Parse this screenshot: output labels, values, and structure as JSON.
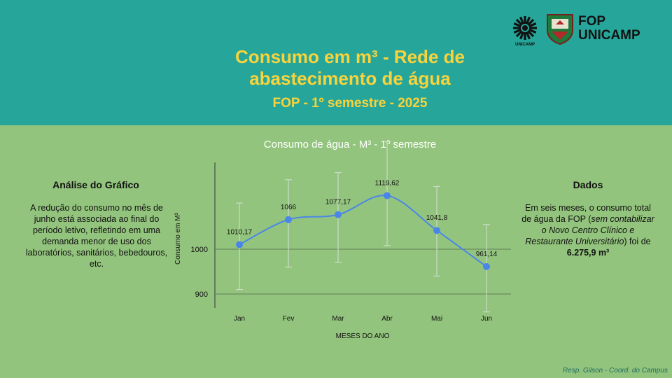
{
  "header": {
    "title_line1": "Consumo em m³ - Rede de",
    "title_line2": "abastecimento de água",
    "subtitle": "FOP - 1º semestre - 2025",
    "brand_line1": "FOP",
    "brand_line2": "UNICAMP",
    "unicamp_logo_text": "UNICAMP"
  },
  "left_panel": {
    "title": "Análise do Gráfico",
    "text": "A redução do consumo no mês de junho está associada ao final do período letivo, refletindo em uma demanda menor de uso dos laboratórios, sanitários, bebedouros, etc."
  },
  "right_panel": {
    "title": "Dados",
    "text_plain1": "Em seis meses, o consumo total de água da FOP (",
    "text_italic": "sem contabilizar o Novo Centro Clínico e Restaurante Universitário",
    "text_plain2": ") foi de ",
    "text_bold": "6.275,9  m³"
  },
  "footer": {
    "credit": "Resp. Gilson - Coord. do Campus"
  },
  "colors": {
    "header_bg": "#26a69a",
    "body_bg": "#93c47d",
    "title": "#f9d33b",
    "line": "#4a86e8",
    "error_bar": "#c9dcc6"
  },
  "chart_data": {
    "type": "line",
    "title": "Consumo de água - M³ - 1º semestre",
    "xlabel": "MESES DO ANO",
    "ylabel": "Consumo em M³",
    "categories": [
      "Jan",
      "Fev",
      "Mar",
      "Abr",
      "Mai",
      "Jun"
    ],
    "values": [
      1010.17,
      1066,
      1077.17,
      1119.62,
      1041.8,
      961.14
    ],
    "value_labels": [
      "1010,17",
      "1066",
      "1077,17",
      "1119,62",
      "1041,8",
      "961,14"
    ],
    "error_low": [
      910,
      960,
      971,
      1008,
      940,
      860
    ],
    "error_high": [
      1103,
      1155,
      1171,
      1240,
      1140,
      1055
    ],
    "yticks": [
      900,
      1000
    ],
    "ylim": [
      860,
      1240
    ],
    "grid": true,
    "smooth": true
  }
}
